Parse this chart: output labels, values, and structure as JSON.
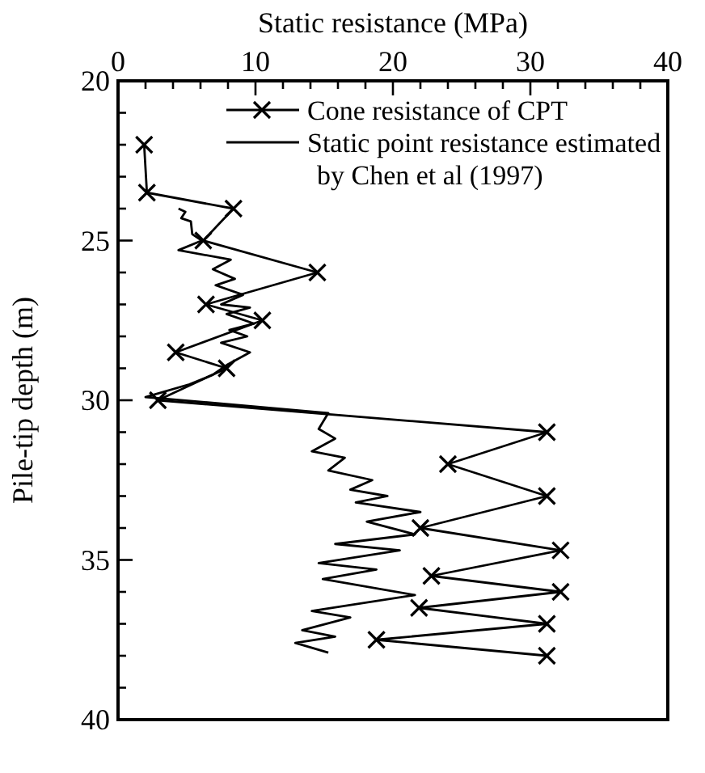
{
  "chart_data": {
    "type": "line",
    "xlabel": "Static resistance (MPa)",
    "ylabel": "Pile-tip depth (m)",
    "xlim": [
      0,
      40
    ],
    "ylim": [
      40,
      20
    ],
    "xticks": [
      0,
      {
        "value": 2,
        "label": null
      },
      {
        "value": 4,
        "label": null
      },
      {
        "value": 6,
        "label": null
      },
      {
        "value": 8,
        "label": null
      },
      10,
      {
        "value": 12,
        "label": null
      },
      {
        "value": 14,
        "label": null
      },
      {
        "value": 16,
        "label": null
      },
      {
        "value": 18,
        "label": null
      },
      20,
      {
        "value": 22,
        "label": null
      },
      {
        "value": 24,
        "label": null
      },
      {
        "value": 26,
        "label": null
      },
      {
        "value": 28,
        "label": null
      },
      30,
      {
        "value": 32,
        "label": null
      },
      {
        "value": 34,
        "label": null
      },
      {
        "value": 36,
        "label": null
      },
      {
        "value": 38,
        "label": null
      },
      40
    ],
    "yticks": [
      20,
      {
        "value": 21,
        "label": null
      },
      {
        "value": 22,
        "label": null
      },
      {
        "value": 23,
        "label": null
      },
      {
        "value": 24,
        "label": null
      },
      25,
      {
        "value": 26,
        "label": null
      },
      {
        "value": 27,
        "label": null
      },
      {
        "value": 28,
        "label": null
      },
      {
        "value": 29,
        "label": null
      },
      30,
      {
        "value": 31,
        "label": null
      },
      {
        "value": 32,
        "label": null
      },
      {
        "value": 33,
        "label": null
      },
      {
        "value": 34,
        "label": null
      },
      35,
      {
        "value": 36,
        "label": null
      },
      {
        "value": 37,
        "label": null
      },
      {
        "value": 38,
        "label": null
      },
      {
        "value": 39,
        "label": null
      },
      40
    ],
    "legend": "top right",
    "grid": false,
    "series": [
      {
        "name": "Cone resistance of CPT",
        "color": "#000000",
        "marker": "cross",
        "x": [
          1.9,
          2.1,
          8.4,
          6.2,
          14.5,
          6.4,
          10.5,
          4.2,
          7.9,
          2.9,
          31.2,
          24,
          31.2,
          22,
          32.2,
          22.8,
          32.2,
          21.9,
          31.2,
          18.8,
          31.2
        ],
        "values": [
          22.0,
          23.5,
          24.0,
          25.0,
          26.0,
          27.0,
          27.5,
          28.5,
          29.0,
          30.0,
          31.0,
          32.0,
          33.0,
          34.0,
          34.7,
          35.5,
          36.0,
          36.5,
          37.0,
          37.5,
          38.0
        ]
      },
      {
        "name": "Static point resistance estimated\nby Chen et al (1997)",
        "color": "#000000",
        "marker": "none",
        "x": [
          4.4,
          4.9,
          4.6,
          5.3,
          5.4,
          6.1,
          4.4,
          8.2,
          6.9,
          8.5,
          7.1,
          9.1,
          7.5,
          9.6,
          7.9,
          9.9,
          8.1,
          9.4,
          7.5,
          9.6,
          7.9,
          6.9,
          5.2,
          2.0,
          15.3,
          14.6,
          15.8,
          14.1,
          16.5,
          15.3,
          18.5,
          16.9,
          19.6,
          17.3,
          22.0,
          18.1,
          21.6,
          15.8,
          20.5,
          14.6,
          18.8,
          14.9,
          21.6,
          14.1,
          16.9,
          13.4,
          15.8,
          12.9,
          15.3
        ],
        "values": [
          24.0,
          24.1,
          24.3,
          24.4,
          24.8,
          25.0,
          25.3,
          25.6,
          25.9,
          26.2,
          26.4,
          26.7,
          27.0,
          27.1,
          27.3,
          27.6,
          27.8,
          28.0,
          28.2,
          28.5,
          28.9,
          29.2,
          29.5,
          29.9,
          30.4,
          30.9,
          31.2,
          31.6,
          31.8,
          32.2,
          32.5,
          32.8,
          33.0,
          33.2,
          33.5,
          33.8,
          34.2,
          34.5,
          34.7,
          35.1,
          35.3,
          35.6,
          36.1,
          36.6,
          36.8,
          37.2,
          37.4,
          37.6,
          37.9
        ]
      }
    ]
  }
}
